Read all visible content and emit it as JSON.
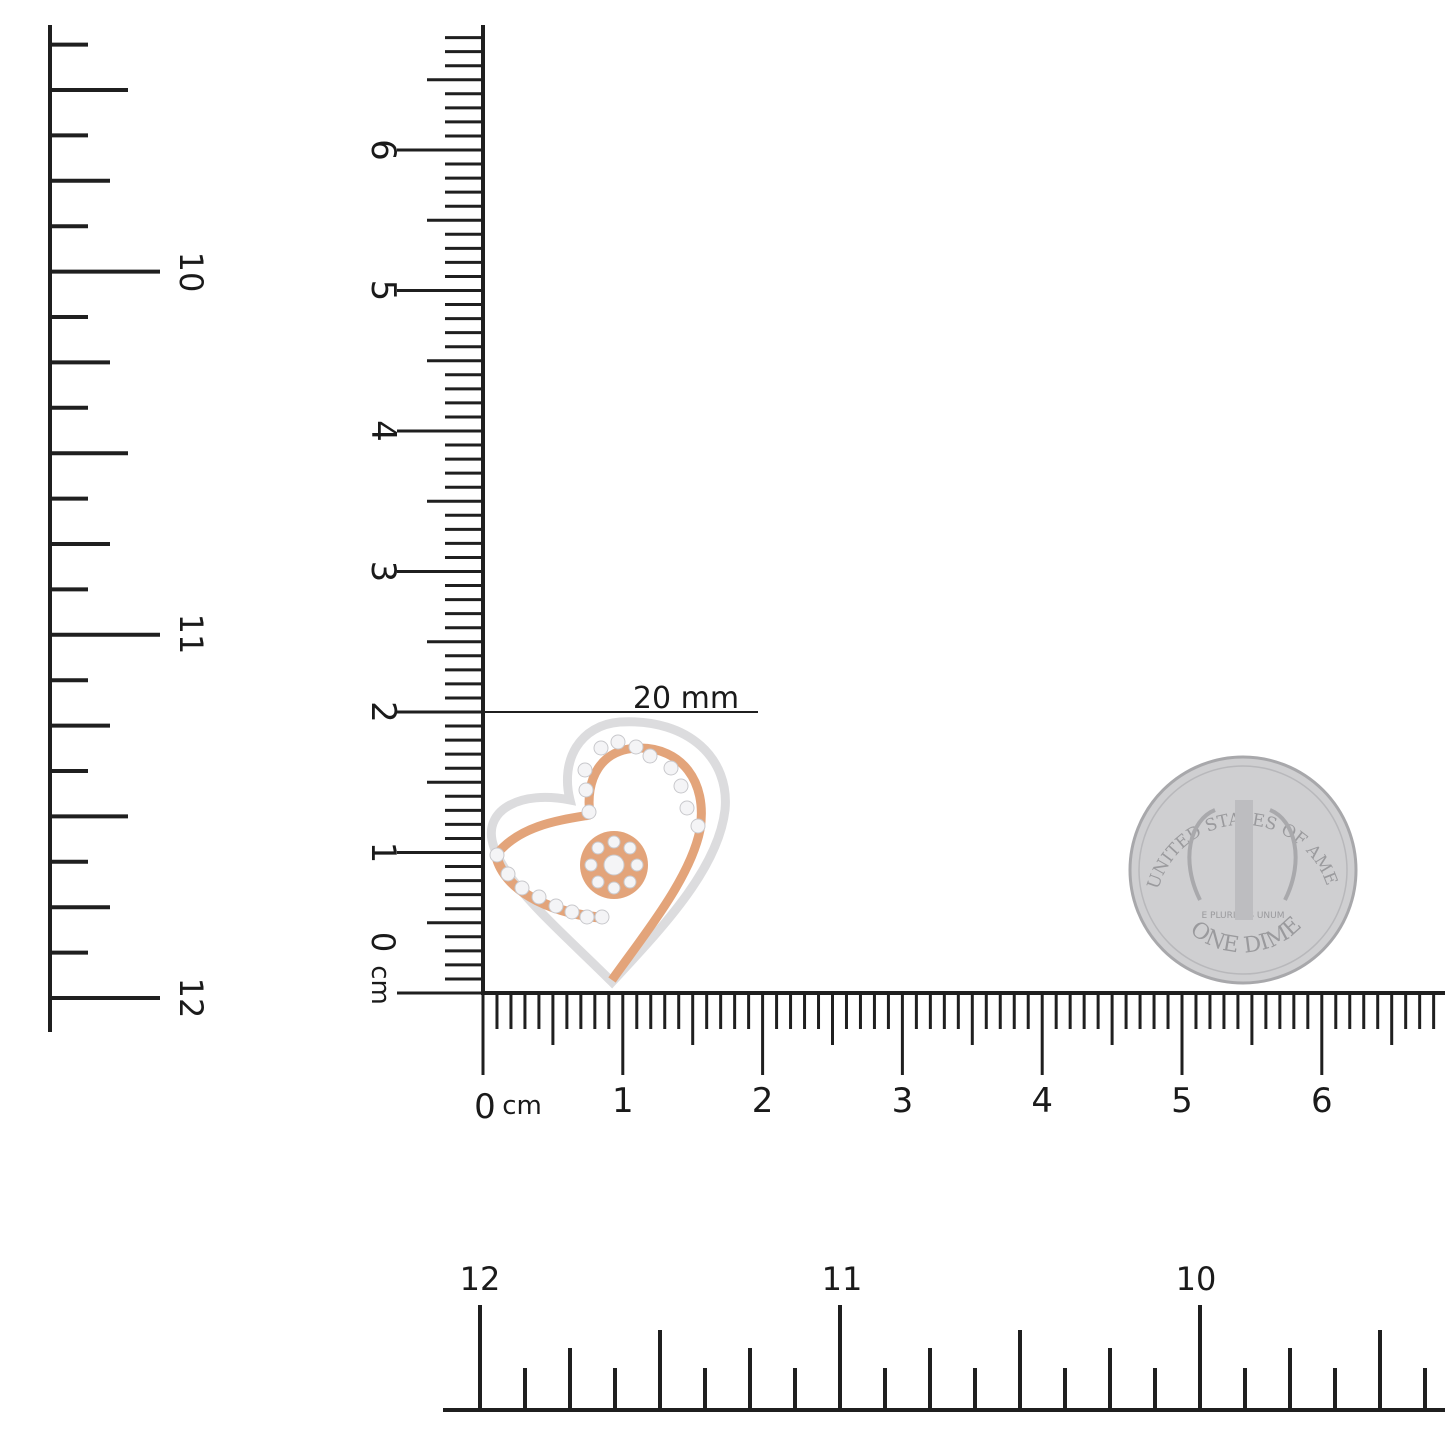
{
  "colors": {
    "ink": "#1f1f1f",
    "rose_gold": "#e3a47a",
    "white_gold": "#e4e4e6",
    "coin": "#c9c9cb"
  },
  "cm_ruler": {
    "unit": "cm",
    "zero_label": "0",
    "horizontal_labels": [
      "1",
      "2",
      "3",
      "4",
      "5",
      "6"
    ],
    "vertical_labels": [
      "1",
      "2",
      "3",
      "4",
      "5",
      "6"
    ]
  },
  "inch_ruler_left": {
    "labels": [
      "10",
      "11",
      "12"
    ]
  },
  "inch_ruler_bottom": {
    "labels": [
      "12",
      "11",
      "10"
    ]
  },
  "dimension": {
    "label": "20 mm",
    "value_mm": 20
  },
  "coin": {
    "top_text": "UNITED STATES OF AMERICA",
    "bottom_text": "ONE DIME",
    "motto": "E PLURIBUS UNUM"
  }
}
